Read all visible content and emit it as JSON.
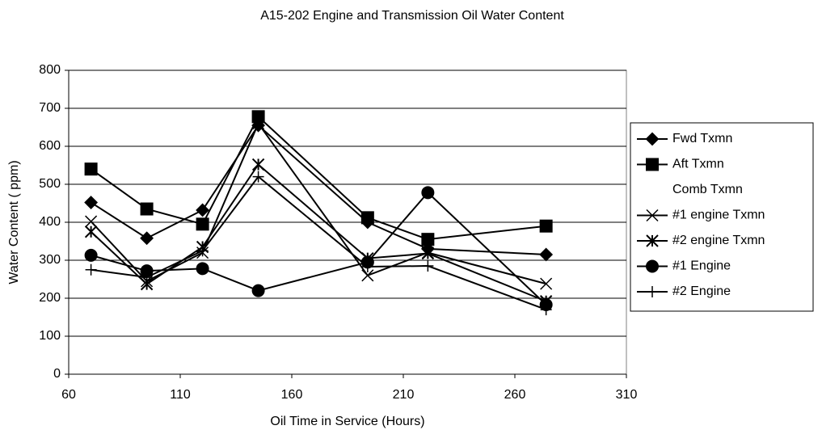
{
  "chart_data": {
    "type": "line",
    "title": "A15-202 Engine and Transmission Oil Water Content",
    "x_label": "Oil Time in Service (Hours)",
    "y_label": "Water Content ( ppm)",
    "x": [
      70,
      95,
      120,
      145,
      194,
      221,
      274
    ],
    "xlim": [
      60,
      310
    ],
    "xticks": [
      60,
      110,
      160,
      210,
      260,
      310
    ],
    "ylim": [
      0,
      800
    ],
    "yticks": [
      0,
      100,
      200,
      300,
      400,
      500,
      600,
      700,
      800
    ],
    "grid": true,
    "legend": "right",
    "series": [
      {
        "name": "Fwd Txmn",
        "color": "#000000",
        "marker": "diamond",
        "values": [
          452,
          358,
          432,
          655,
          400,
          330,
          315
        ]
      },
      {
        "name": "Aft Txmn",
        "color": "#000000",
        "marker": "square",
        "values": [
          540,
          435,
          395,
          678,
          412,
          355,
          390
        ]
      },
      {
        "name": "Comb Txmn",
        "color": "#000000",
        "marker": "none",
        "values": [
          null,
          null,
          null,
          null,
          null,
          null,
          null
        ]
      },
      {
        "name": "#1 engine Txmn",
        "color": "#000000",
        "marker": "x",
        "values": [
          402,
          245,
          320,
          660,
          260,
          320,
          238
        ]
      },
      {
        "name": "#2 engine Txmn",
        "color": "#000000",
        "marker": "star",
        "values": [
          375,
          237,
          335,
          552,
          305,
          318,
          192
        ]
      },
      {
        "name": "#1 Engine",
        "color": "#000000",
        "marker": "circle",
        "values": [
          313,
          272,
          278,
          220,
          295,
          478,
          183
        ]
      },
      {
        "name": "#2 Engine",
        "color": "#000000",
        "marker": "plus",
        "values": [
          275,
          255,
          325,
          520,
          283,
          285,
          170
        ]
      }
    ]
  }
}
